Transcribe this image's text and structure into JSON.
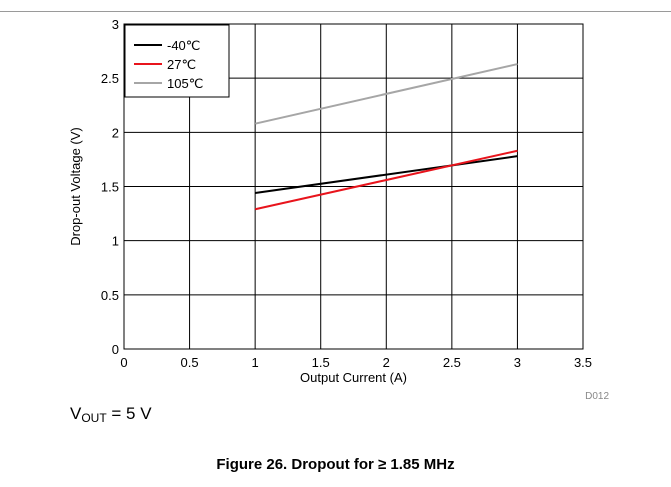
{
  "chart_data": {
    "type": "line",
    "xlabel": "Output Current (A)",
    "ylabel": "Drop-out Voltage (V)",
    "xlim": [
      0,
      3.5
    ],
    "ylim": [
      0,
      3
    ],
    "xticks": [
      0,
      0.5,
      1,
      1.5,
      2,
      2.5,
      3,
      3.5
    ],
    "yticks": [
      0,
      0.5,
      1,
      1.5,
      2,
      2.5,
      3
    ],
    "xtick_labels": [
      "0",
      "0.5",
      "1",
      "1.5",
      "2",
      "2.5",
      "3",
      "3.5"
    ],
    "ytick_labels": [
      "0",
      "0.5",
      "1",
      "1.5",
      "2",
      "2.5",
      "3"
    ],
    "grid": true,
    "legend_position": "top-left",
    "series": [
      {
        "name": "-40℃",
        "color": "#000000",
        "x": [
          1,
          3
        ],
        "y": [
          1.44,
          1.78
        ]
      },
      {
        "name": "27℃",
        "color": "#e8141c",
        "x": [
          1,
          3
        ],
        "y": [
          1.29,
          1.83
        ]
      },
      {
        "name": "105℃",
        "color": "#a6a6a6",
        "x": [
          1,
          3
        ],
        "y": [
          2.08,
          2.63
        ]
      }
    ],
    "annotation": "D012"
  },
  "note": {
    "prefix": "V",
    "sub": "OUT",
    "suffix": " = 5 V"
  },
  "caption": "Figure 26. Dropout for ≥ 1.85 MHz"
}
